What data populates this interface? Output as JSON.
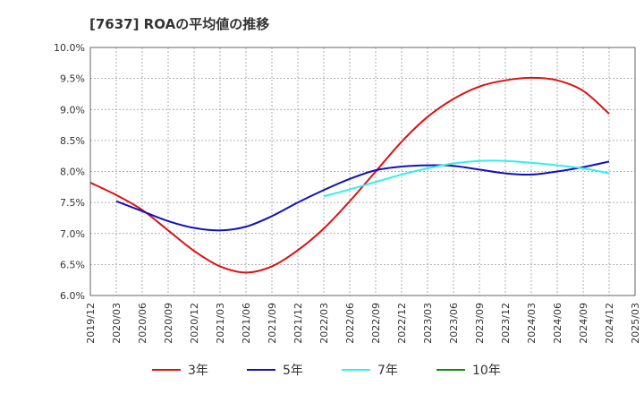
{
  "chart_data": {
    "type": "line",
    "title": "[7637]  ROAの平均値の推移",
    "xlabel": "",
    "ylabel": "",
    "ylim": [
      6.0,
      10.0
    ],
    "y_ticks": [
      6.0,
      6.5,
      7.0,
      7.5,
      8.0,
      8.5,
      9.0,
      9.5,
      10.0
    ],
    "y_tick_labels": [
      "6.0%",
      "6.5%",
      "7.0%",
      "7.5%",
      "8.0%",
      "8.5%",
      "9.0%",
      "9.5%",
      "10.0%"
    ],
    "x_tick_labels": [
      "2019/12",
      "2020/03",
      "2020/06",
      "2020/09",
      "2020/12",
      "2021/03",
      "2021/06",
      "2021/09",
      "2021/12",
      "2022/03",
      "2022/06",
      "2022/09",
      "2022/12",
      "2023/03",
      "2023/06",
      "2023/09",
      "2023/12",
      "2024/03",
      "2024/06",
      "2024/09",
      "2024/12",
      "2025/03"
    ],
    "grid": true,
    "legend_position": "bottom",
    "series": [
      {
        "name": "3年",
        "color": "#dd1111",
        "x": [
          "2019/12",
          "2020/03",
          "2020/06",
          "2020/09",
          "2020/12",
          "2021/03",
          "2021/06",
          "2021/09",
          "2021/12",
          "2022/03",
          "2022/06",
          "2022/09",
          "2022/12",
          "2023/03",
          "2023/06",
          "2023/09",
          "2023/12",
          "2024/03",
          "2024/06",
          "2024/09",
          "2024/12"
        ],
        "values": [
          7.82,
          7.62,
          7.38,
          7.05,
          6.72,
          6.47,
          6.37,
          6.47,
          6.73,
          7.08,
          7.52,
          8.0,
          8.48,
          8.88,
          9.17,
          9.37,
          9.47,
          9.51,
          9.47,
          9.3,
          8.93
        ]
      },
      {
        "name": "5年",
        "color": "#1111bb",
        "x": [
          "2020/03",
          "2020/06",
          "2020/09",
          "2020/12",
          "2021/03",
          "2021/06",
          "2021/09",
          "2021/12",
          "2022/03",
          "2022/06",
          "2022/09",
          "2022/12",
          "2023/03",
          "2023/06",
          "2023/09",
          "2023/12",
          "2024/03",
          "2024/06",
          "2024/09",
          "2024/12"
        ],
        "values": [
          7.52,
          7.36,
          7.2,
          7.09,
          7.05,
          7.11,
          7.28,
          7.5,
          7.7,
          7.88,
          8.02,
          8.08,
          8.1,
          8.09,
          8.03,
          7.97,
          7.95,
          8.0,
          8.07,
          8.16
        ]
      },
      {
        "name": "7年",
        "color": "#33eeee",
        "x": [
          "2022/03",
          "2022/06",
          "2022/09",
          "2022/12",
          "2023/03",
          "2023/06",
          "2023/09",
          "2023/12",
          "2024/03",
          "2024/06",
          "2024/09",
          "2024/12"
        ],
        "values": [
          7.6,
          7.71,
          7.83,
          7.95,
          8.05,
          8.13,
          8.17,
          8.17,
          8.14,
          8.1,
          8.05,
          7.97
        ]
      },
      {
        "name": "10年",
        "color": "#118811",
        "x": [],
        "values": []
      }
    ]
  }
}
